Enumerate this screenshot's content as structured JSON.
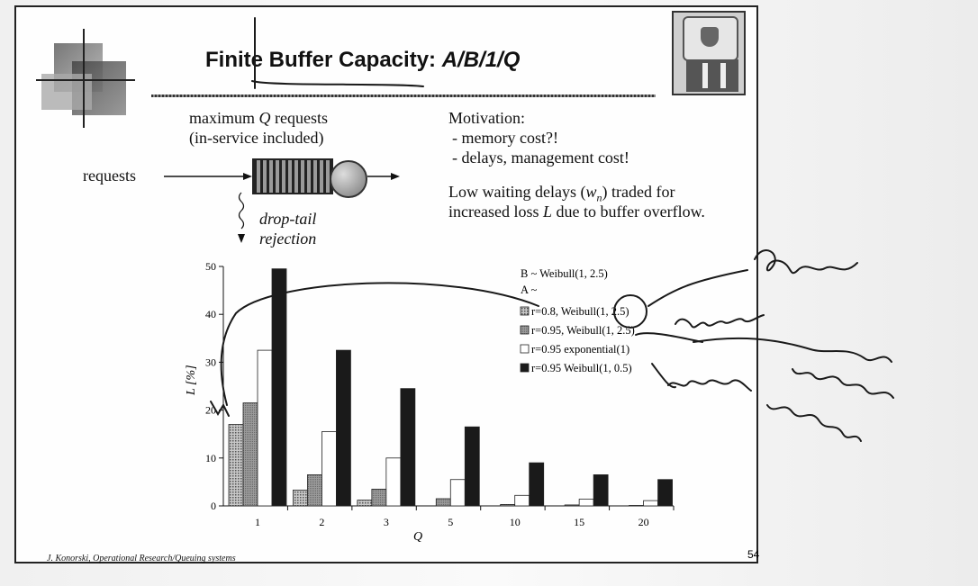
{
  "slide": {
    "title_plain": "Finite Buffer Capacity: ",
    "title_italic": "A/B/1/Q",
    "footer": "J. Konorski, Operational Research/Queuing systems",
    "page_number": "54"
  },
  "diagram": {
    "max_label_1": "maximum",
    "max_label_q": "Q",
    "max_label_2": "requests",
    "in_service": "(in-service included)",
    "requests": "requests",
    "drop_tail": "drop-tail",
    "rejection": "rejection"
  },
  "motivation": {
    "heading": "Motivation:",
    "item1": "- memory cost?!",
    "item2": "- delays, management cost!",
    "tradeoff_1a": "Low waiting delays (",
    "tradeoff_1b": "w",
    "tradeoff_1c": "n",
    "tradeoff_1d": ") traded for",
    "tradeoff_2a": "increased loss ",
    "tradeoff_2b": "L",
    "tradeoff_2c": " due to buffer overflow."
  },
  "chart_data": {
    "type": "bar",
    "xlabel": "Q",
    "ylabel": "L [%]",
    "ylim": [
      0,
      50
    ],
    "yticks": [
      0,
      10,
      20,
      30,
      40,
      50
    ],
    "categories": [
      "1",
      "2",
      "3",
      "5",
      "10",
      "15",
      "20"
    ],
    "legend_header_1": "B ~ Weibull(1, 2.5)",
    "legend_header_2": "A ~",
    "series": [
      {
        "name": "r=0.8, Weibull(1, 2.5)",
        "color": "#9a9a9a",
        "pattern": "dotted",
        "values": [
          17,
          0,
          0,
          0,
          0,
          0,
          0
        ]
      },
      {
        "name": "r=0.95, Weibull(1, 2.5)",
        "color": "#888888",
        "pattern": "grey",
        "values": [
          21.5,
          6.5,
          3.5,
          1.5,
          0.3,
          0.2,
          0.1
        ]
      },
      {
        "name": "r=0.95 exponential(1)",
        "color": "#ffffff",
        "pattern": "white",
        "values": [
          32.5,
          15.5,
          10,
          5.5,
          2.2,
          1.4,
          1.1
        ]
      },
      {
        "name": "r=0.95 Weibull(1, 0.5)",
        "color": "#1a1a1a",
        "pattern": "black",
        "values": [
          49.5,
          32.5,
          24.5,
          16.5,
          9,
          6.5,
          5.5
        ]
      }
    ],
    "extra_small_bars_series1": [
      0,
      3.3,
      1.2,
      0,
      0,
      0,
      0
    ]
  }
}
